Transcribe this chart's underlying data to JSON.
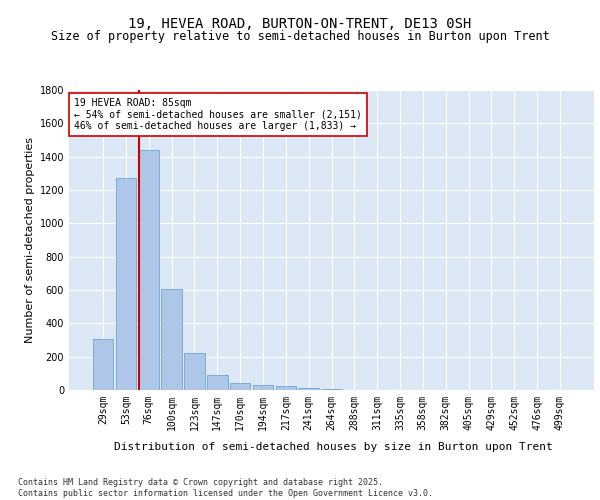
{
  "title": "19, HEVEA ROAD, BURTON-ON-TRENT, DE13 0SH",
  "subtitle": "Size of property relative to semi-detached houses in Burton upon Trent",
  "xlabel": "Distribution of semi-detached houses by size in Burton upon Trent",
  "ylabel": "Number of semi-detached properties",
  "categories": [
    "29sqm",
    "53sqm",
    "76sqm",
    "100sqm",
    "123sqm",
    "147sqm",
    "170sqm",
    "194sqm",
    "217sqm",
    "241sqm",
    "264sqm",
    "288sqm",
    "311sqm",
    "335sqm",
    "358sqm",
    "382sqm",
    "405sqm",
    "429sqm",
    "452sqm",
    "476sqm",
    "499sqm"
  ],
  "values": [
    305,
    1275,
    1440,
    605,
    220,
    88,
    40,
    30,
    22,
    10,
    5,
    0,
    0,
    0,
    0,
    0,
    0,
    0,
    0,
    0,
    0
  ],
  "bar_color": "#aec6e8",
  "bar_edge_color": "#5b9bd5",
  "vline_x_index": 2,
  "vline_color": "#cc0000",
  "annotation_text": "19 HEVEA ROAD: 85sqm\n← 54% of semi-detached houses are smaller (2,151)\n46% of semi-detached houses are larger (1,833) →",
  "annotation_box_color": "#ffffff",
  "annotation_box_edge": "#cc0000",
  "ylim": [
    0,
    1800
  ],
  "yticks": [
    0,
    200,
    400,
    600,
    800,
    1000,
    1200,
    1400,
    1600,
    1800
  ],
  "background_color": "#dce8f5",
  "grid_color": "#ffffff",
  "footer": "Contains HM Land Registry data © Crown copyright and database right 2025.\nContains public sector information licensed under the Open Government Licence v3.0.",
  "title_fontsize": 10,
  "subtitle_fontsize": 8.5,
  "axis_label_fontsize": 8,
  "tick_fontsize": 7,
  "annotation_fontsize": 7,
  "footer_fontsize": 6
}
